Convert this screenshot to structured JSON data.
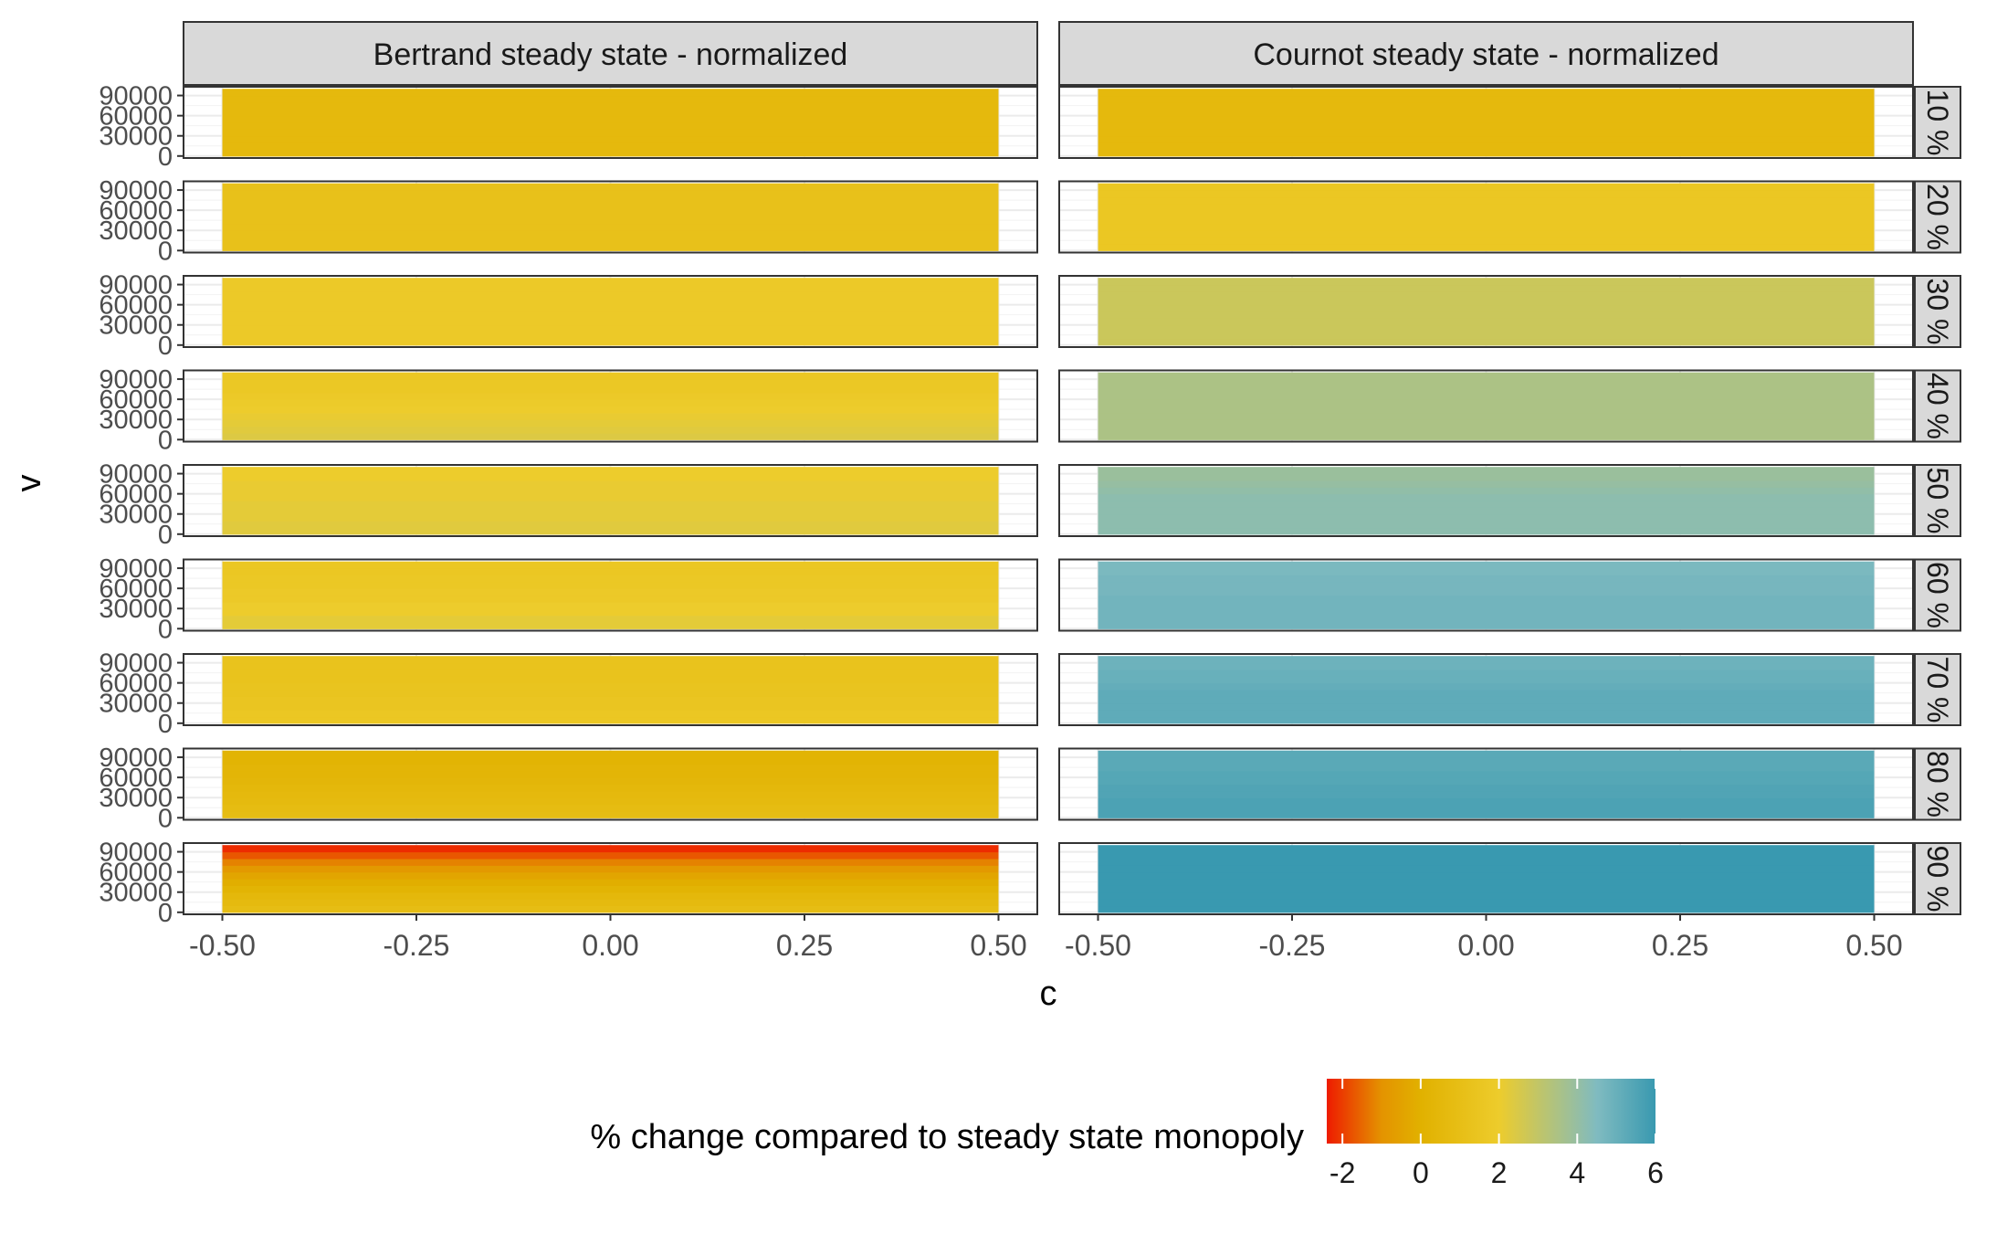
{
  "chart_data": {
    "type": "heatmap",
    "facet_columns": [
      "Bertrand steady state - normalized",
      "Cournot steady state - normalized"
    ],
    "facet_rows": [
      "10 %",
      "20 %",
      "30 %",
      "40 %",
      "50 %",
      "60 %",
      "70 %",
      "80 %",
      "90 %"
    ],
    "xlabel": "c",
    "ylabel": "v",
    "xlim": [
      -0.55,
      0.55
    ],
    "x_ticks": [
      "-0.50",
      "-0.25",
      "0.00",
      "0.25",
      "0.50"
    ],
    "x_tick_values": [
      -0.5,
      -0.25,
      0,
      0.25,
      0.5
    ],
    "y_ticks": [
      "0",
      "30000",
      "60000",
      "90000"
    ],
    "y_tick_values": [
      0,
      30000,
      60000,
      90000
    ],
    "ylim": [
      -3000,
      103000
    ],
    "tile_x_range": [
      -0.5,
      0.5
    ],
    "tile_y_range": [
      0,
      100000
    ],
    "y_bands": [
      [
        0,
        10000
      ],
      [
        10000,
        20000
      ],
      [
        20000,
        30000
      ],
      [
        30000,
        40000
      ],
      [
        40000,
        50000
      ],
      [
        50000,
        60000
      ],
      [
        60000,
        70000
      ],
      [
        70000,
        80000
      ],
      [
        80000,
        90000
      ],
      [
        90000,
        100000
      ]
    ],
    "values": {
      "Bertrand steady state - normalized": [
        [
          0.6,
          0.6,
          0.6,
          0.6,
          0.6,
          0.6,
          0.6,
          0.6,
          0.6,
          0.6
        ],
        [
          1.2,
          1.2,
          1.2,
          1.2,
          1.2,
          1.2,
          1.2,
          1.2,
          1.2,
          1.2
        ],
        [
          1.8,
          1.8,
          1.8,
          1.8,
          1.8,
          1.8,
          1.8,
          1.8,
          1.8,
          1.8
        ],
        [
          2.4,
          2.3,
          2.2,
          2.1,
          2.0,
          1.9,
          1.8,
          1.7,
          1.7,
          1.6
        ],
        [
          2.3,
          2.3,
          2.2,
          2.2,
          2.2,
          2.1,
          2.1,
          2.1,
          2.0,
          2.0
        ],
        [
          2.2,
          2.2,
          2.0,
          2.0,
          1.8,
          1.8,
          1.7,
          1.7,
          1.6,
          1.6
        ],
        [
          1.6,
          1.6,
          1.5,
          1.5,
          1.4,
          1.4,
          1.3,
          1.3,
          1.3,
          1.3
        ],
        [
          0.9,
          0.8,
          0.7,
          0.6,
          0.5,
          0.4,
          0.3,
          0.3,
          0.2,
          0.2
        ],
        [
          0.9,
          0.7,
          0.5,
          0.2,
          -0.1,
          -0.4,
          -0.8,
          -1.2,
          -1.7,
          -2.2
        ]
      ],
      "Cournot steady state - normalized": [
        [
          0.6,
          0.6,
          0.6,
          0.6,
          0.6,
          0.6,
          0.6,
          0.6,
          0.6,
          0.6
        ],
        [
          1.6,
          1.6,
          1.6,
          1.6,
          1.6,
          1.6,
          1.6,
          1.6,
          1.6,
          1.6
        ],
        [
          2.8,
          2.8,
          2.8,
          2.8,
          2.8,
          2.8,
          2.8,
          2.8,
          2.8,
          2.8
        ],
        [
          3.5,
          3.5,
          3.5,
          3.5,
          3.5,
          3.5,
          3.5,
          3.5,
          3.5,
          3.5
        ],
        [
          4.2,
          4.2,
          4.2,
          4.2,
          4.2,
          4.2,
          4.1,
          4.0,
          3.9,
          3.9
        ],
        [
          4.8,
          4.8,
          4.8,
          4.8,
          4.8,
          4.7,
          4.7,
          4.7,
          4.6,
          4.6
        ],
        [
          5.2,
          5.2,
          5.2,
          5.2,
          5.2,
          5.1,
          5.0,
          5.0,
          4.9,
          4.9
        ],
        [
          5.6,
          5.6,
          5.6,
          5.5,
          5.5,
          5.4,
          5.4,
          5.3,
          5.3,
          5.3
        ],
        [
          6.0,
          6.0,
          6.0,
          6.0,
          6.0,
          6.0,
          6.0,
          6.0,
          6.0,
          6.0
        ]
      ]
    },
    "legend": {
      "title": "% change compared to steady state monopoly",
      "position": "bottom",
      "ticks": [
        "-2",
        "0",
        "2",
        "4",
        "6"
      ],
      "tick_values": [
        -2,
        0,
        2,
        4,
        6
      ],
      "range": [
        -2.4,
        6.0
      ],
      "colors": [
        "#ee1b00",
        "#e49300",
        "#e1b100",
        "#edcc2c",
        "#80bbc0",
        "#3999b0"
      ],
      "color_stops": [
        -2.4,
        -1.0,
        0.0,
        2.0,
        4.5,
        6.0
      ]
    },
    "grid": true,
    "theme": "bw"
  }
}
